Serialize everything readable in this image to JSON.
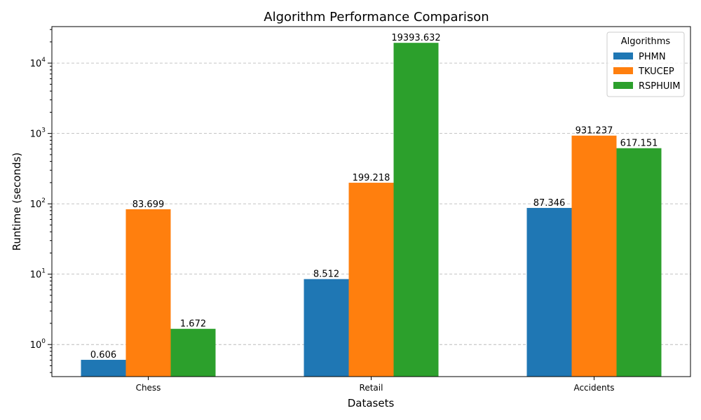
{
  "chart_data": {
    "type": "bar",
    "title": "Algorithm Performance Comparison",
    "xlabel": "Datasets",
    "ylabel": "Runtime (seconds)",
    "yscale": "log",
    "ylim": [
      0.35,
      33000
    ],
    "y_major_ticks": [
      1,
      10,
      100,
      1000,
      10000
    ],
    "y_tick_labels": [
      {
        "base": "10",
        "exp": "0"
      },
      {
        "base": "10",
        "exp": "1"
      },
      {
        "base": "10",
        "exp": "2"
      },
      {
        "base": "10",
        "exp": "3"
      },
      {
        "base": "10",
        "exp": "4"
      }
    ],
    "grid": "y-major-dashed",
    "categories": [
      "Chess",
      "Retail",
      "Accidents"
    ],
    "legend": {
      "title": "Algorithms",
      "placement": "top-right"
    },
    "series": [
      {
        "name": "PHMN",
        "color": "#1f77b4",
        "values": [
          0.606,
          8.512,
          87.346
        ],
        "labels": [
          "0.606",
          "8.512",
          "87.346"
        ]
      },
      {
        "name": "TKUCEP",
        "color": "#ff7f0e",
        "values": [
          83.699,
          199.218,
          931.237
        ],
        "labels": [
          "83.699",
          "199.218",
          "931.237"
        ]
      },
      {
        "name": "RSPHUIM",
        "color": "#2ca02c",
        "values": [
          1.672,
          19393.632,
          617.151
        ],
        "labels": [
          "1.672",
          "19393.632",
          "617.151"
        ]
      }
    ]
  }
}
